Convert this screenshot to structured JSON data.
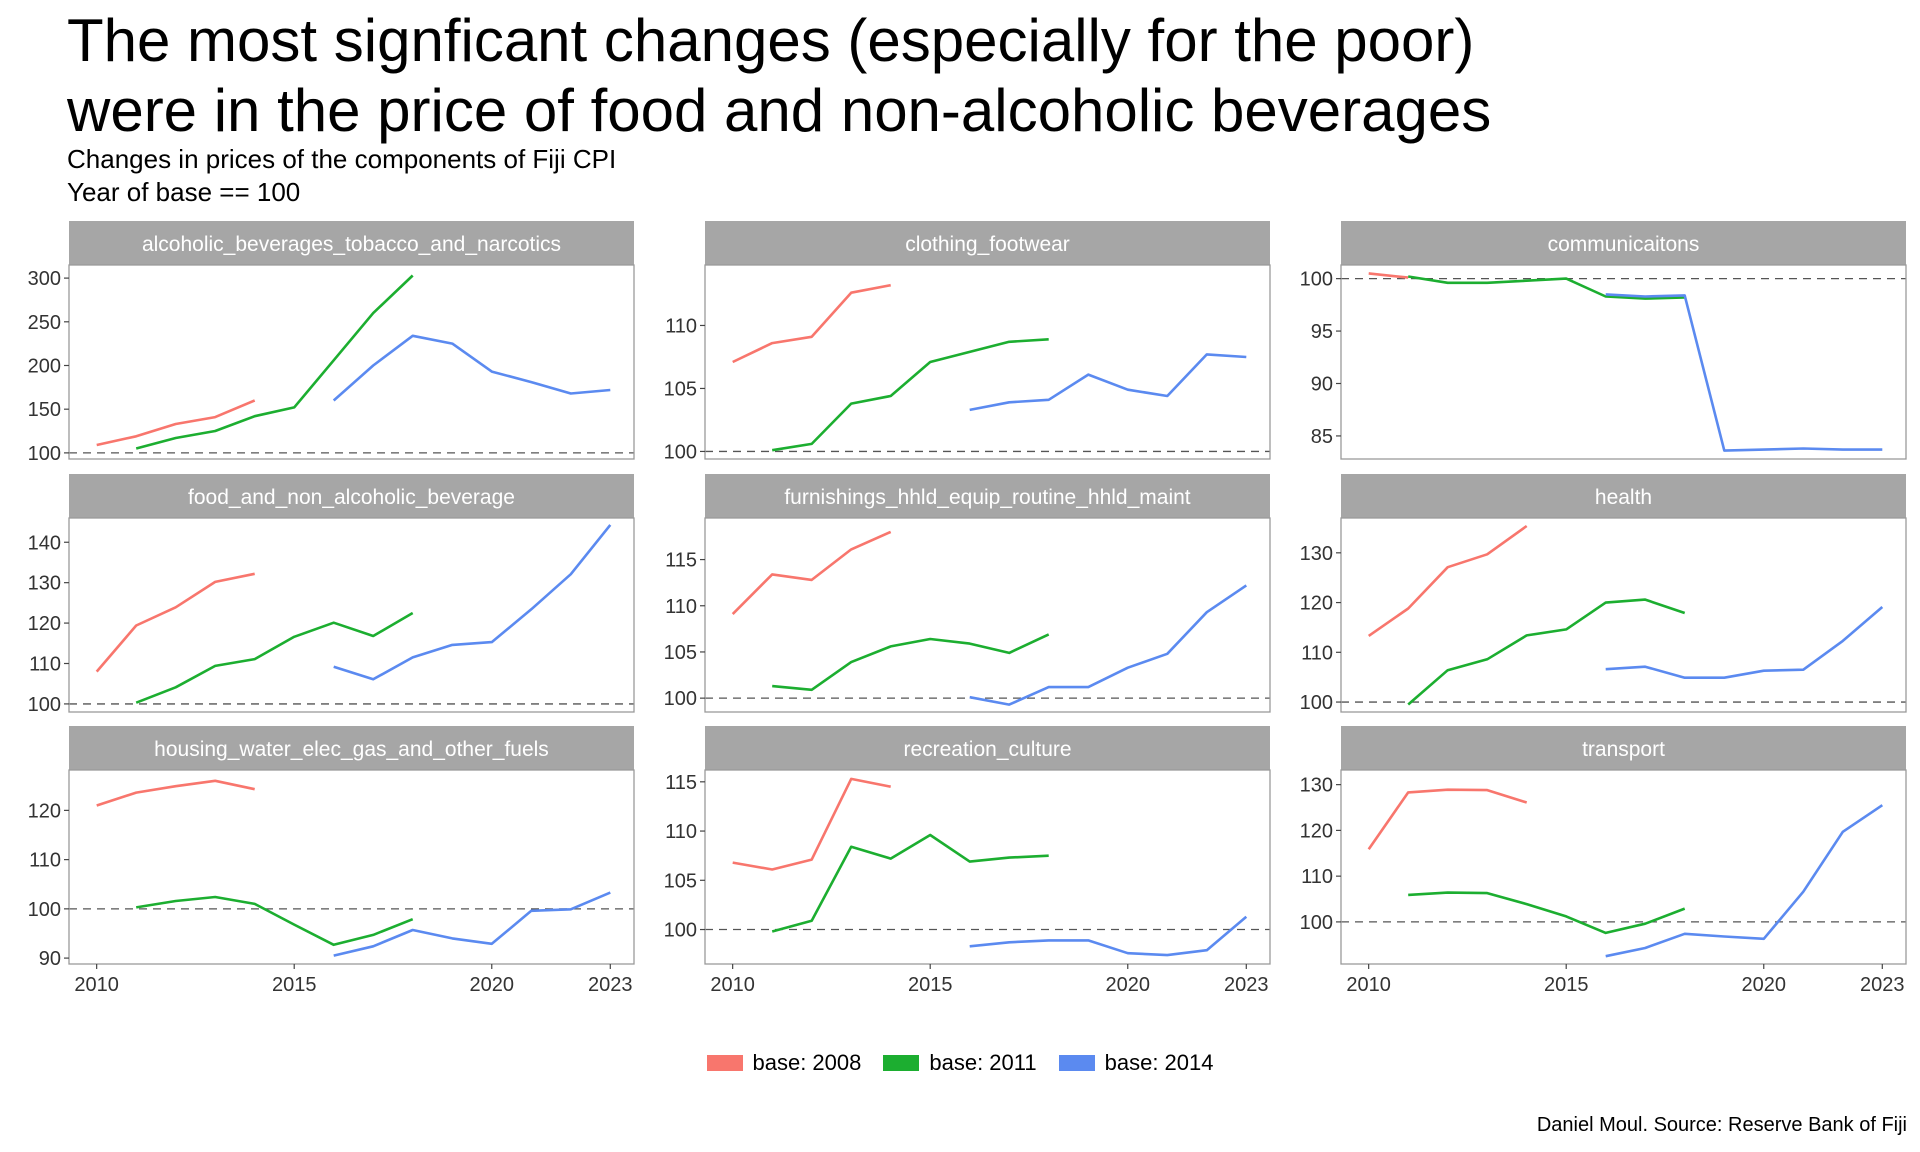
{
  "title_lines": [
    "The most signficant changes (especially for the poor)",
    "were in the price of food and non-alcoholic beverages"
  ],
  "subtitle_lines": [
    "Changes in prices of the components of Fiji CPI",
    "Year of base == 100"
  ],
  "caption": "Daniel Moul. Source: Reserve Bank of Fiji",
  "colors": {
    "base_2008": "#F8766D",
    "base_2011": "#1CAE30",
    "base_2014": "#5B8AF0",
    "strip": "#a6a6a6",
    "reference_line": "#555555"
  },
  "legend": [
    {
      "label": "base: 2008",
      "color": "#F8766D"
    },
    {
      "label": "base: 2011",
      "color": "#1CAE30"
    },
    {
      "label": "base: 2014",
      "color": "#5B8AF0"
    }
  ],
  "chart_data": {
    "type": "line",
    "facet_layout": "3x3 grid, free y scales, shared x axis",
    "reference_line_y": 100,
    "x_ticks": [
      2010,
      2015,
      2020,
      2023
    ],
    "x_range": [
      2009.3,
      2023.6
    ],
    "series_names": [
      "base: 2008",
      "base: 2011",
      "base: 2014"
    ],
    "panels": [
      {
        "title": "alcoholic_beverages_tobacco_and_narcotics",
        "ylim": [
          93,
          315
        ],
        "y_ticks": [
          100,
          150,
          200,
          250,
          300
        ],
        "series": [
          {
            "name": "base: 2008",
            "x": [
              2010,
              2011,
              2012,
              2013,
              2014
            ],
            "y": [
              109,
              119,
              133,
              141,
              160
            ]
          },
          {
            "name": "base: 2011",
            "x": [
              2011,
              2012,
              2013,
              2014,
              2015,
              2016,
              2017,
              2018
            ],
            "y": [
              105,
              117,
              125,
              142,
              152,
              206,
              260,
              303
            ]
          },
          {
            "name": "base: 2014",
            "x": [
              2016,
              2017,
              2018,
              2019,
              2020,
              2021,
              2022,
              2023
            ],
            "y": [
              160,
              200,
              234,
              225,
              193,
              181,
              168,
              172
            ]
          }
        ]
      },
      {
        "title": "clothing_footwear",
        "ylim": [
          99.4,
          114.8
        ],
        "y_ticks": [
          100,
          105,
          110
        ],
        "series": [
          {
            "name": "base: 2008",
            "x": [
              2010,
              2011,
              2012,
              2013,
              2014
            ],
            "y": [
              107.1,
              108.6,
              109.1,
              112.6,
              113.2
            ]
          },
          {
            "name": "base: 2011",
            "x": [
              2011,
              2012,
              2013,
              2014,
              2015,
              2016,
              2017,
              2018
            ],
            "y": [
              100.1,
              100.6,
              103.8,
              104.4,
              107.1,
              107.9,
              108.7,
              108.9
            ]
          },
          {
            "name": "base: 2014",
            "x": [
              2016,
              2017,
              2018,
              2019,
              2020,
              2021,
              2022,
              2023
            ],
            "y": [
              103.3,
              103.9,
              104.1,
              106.1,
              104.9,
              104.4,
              107.7,
              107.5
            ]
          }
        ]
      },
      {
        "title": "communicaitons",
        "ylim": [
          82.8,
          101.3
        ],
        "y_ticks": [
          85,
          90,
          95,
          100
        ],
        "series": [
          {
            "name": "base: 2008",
            "x": [
              2010,
              2011
            ],
            "y": [
              100.5,
              100.1
            ]
          },
          {
            "name": "base: 2011",
            "x": [
              2011,
              2012,
              2013,
              2014,
              2015,
              2016,
              2017,
              2018
            ],
            "y": [
              100.2,
              99.6,
              99.6,
              99.8,
              100.0,
              98.3,
              98.1,
              98.2
            ]
          },
          {
            "name": "base: 2014",
            "x": [
              2016,
              2017,
              2018,
              2019,
              2020,
              2021,
              2022,
              2023
            ],
            "y": [
              98.5,
              98.3,
              98.4,
              83.6,
              83.7,
              83.8,
              83.7,
              83.7
            ]
          }
        ]
      },
      {
        "title": "food_and_non_alcoholic_beverage",
        "ylim": [
          98,
          146
        ],
        "y_ticks": [
          100,
          110,
          120,
          130,
          140
        ],
        "series": [
          {
            "name": "base: 2008",
            "x": [
              2010,
              2011,
              2012,
              2013,
              2014
            ],
            "y": [
              108.0,
              119.4,
              123.9,
              130.2,
              132.2
            ]
          },
          {
            "name": "base: 2011",
            "x": [
              2011,
              2012,
              2013,
              2014,
              2015,
              2016,
              2017,
              2018
            ],
            "y": [
              100.3,
              104.1,
              109.4,
              111.1,
              116.6,
              120.1,
              116.8,
              122.5
            ]
          },
          {
            "name": "base: 2014",
            "x": [
              2016,
              2017,
              2018,
              2019,
              2020,
              2021,
              2022,
              2023
            ],
            "y": [
              109.2,
              106.1,
              111.5,
              114.6,
              115.3,
              123.4,
              132.1,
              144.3
            ]
          }
        ]
      },
      {
        "title": "furnishings_hhld_equip_routine_hhld_maint",
        "ylim": [
          98.5,
          119.5
        ],
        "y_ticks": [
          100,
          105,
          110,
          115
        ],
        "series": [
          {
            "name": "base: 2008",
            "x": [
              2010,
              2011,
              2012,
              2013,
              2014
            ],
            "y": [
              109.1,
              113.4,
              112.8,
              116.1,
              118.0
            ]
          },
          {
            "name": "base: 2011",
            "x": [
              2011,
              2012,
              2013,
              2014,
              2015,
              2016,
              2017,
              2018
            ],
            "y": [
              101.3,
              100.9,
              103.9,
              105.6,
              106.4,
              105.9,
              104.9,
              106.9
            ]
          },
          {
            "name": "base: 2014",
            "x": [
              2016,
              2017,
              2018,
              2019,
              2020,
              2021,
              2022,
              2023
            ],
            "y": [
              100.1,
              99.3,
              101.2,
              101.2,
              103.3,
              104.8,
              109.3,
              112.2
            ]
          }
        ]
      },
      {
        "title": "health",
        "ylim": [
          98,
          137
        ],
        "y_ticks": [
          100,
          110,
          120,
          130
        ],
        "series": [
          {
            "name": "base: 2008",
            "x": [
              2010,
              2011,
              2012,
              2013,
              2014
            ],
            "y": [
              113.3,
              118.8,
              127.1,
              129.7,
              135.4
            ]
          },
          {
            "name": "base: 2011",
            "x": [
              2011,
              2012,
              2013,
              2014,
              2015,
              2016,
              2017,
              2018
            ],
            "y": [
              99.5,
              106.4,
              108.6,
              113.4,
              114.6,
              120.0,
              120.6,
              117.9
            ]
          },
          {
            "name": "base: 2014",
            "x": [
              2016,
              2017,
              2018,
              2019,
              2020,
              2021,
              2022,
              2023
            ],
            "y": [
              106.6,
              107.1,
              104.9,
              104.9,
              106.3,
              106.5,
              112.3,
              119.1
            ]
          }
        ]
      },
      {
        "title": "housing_water_elec_gas_and_other_fuels",
        "ylim": [
          88.8,
          128.2
        ],
        "y_ticks": [
          90,
          100,
          110,
          120
        ],
        "series": [
          {
            "name": "base: 2008",
            "x": [
              2010,
              2011,
              2012,
              2013,
              2014
            ],
            "y": [
              121.0,
              123.6,
              124.9,
              126.0,
              124.3
            ]
          },
          {
            "name": "base: 2011",
            "x": [
              2011,
              2012,
              2013,
              2014,
              2015,
              2016,
              2017,
              2018
            ],
            "y": [
              100.3,
              101.6,
              102.4,
              101.0,
              96.8,
              92.7,
              94.7,
              97.9
            ]
          },
          {
            "name": "base: 2014",
            "x": [
              2016,
              2017,
              2018,
              2019,
              2020,
              2021,
              2022,
              2023
            ],
            "y": [
              90.5,
              92.4,
              95.7,
              94.0,
              92.9,
              99.6,
              99.9,
              103.3
            ]
          }
        ]
      },
      {
        "title": "recreation_culture",
        "ylim": [
          96.5,
          116.2
        ],
        "y_ticks": [
          100,
          105,
          110,
          115
        ],
        "series": [
          {
            "name": "base: 2008",
            "x": [
              2010,
              2011,
              2012,
              2013,
              2014
            ],
            "y": [
              106.8,
              106.1,
              107.1,
              115.3,
              114.5
            ]
          },
          {
            "name": "base: 2011",
            "x": [
              2011,
              2012,
              2013,
              2014,
              2015,
              2016,
              2017,
              2018
            ],
            "y": [
              99.8,
              100.9,
              108.4,
              107.2,
              109.6,
              106.9,
              107.3,
              107.5
            ]
          },
          {
            "name": "base: 2014",
            "x": [
              2016,
              2017,
              2018,
              2019,
              2020,
              2021,
              2022,
              2023
            ],
            "y": [
              98.3,
              98.7,
              98.9,
              98.9,
              97.6,
              97.4,
              97.9,
              101.3
            ]
          }
        ]
      },
      {
        "title": "transport",
        "ylim": [
          90.8,
          133.2
        ],
        "y_ticks": [
          100,
          110,
          120,
          130
        ],
        "series": [
          {
            "name": "base: 2008",
            "x": [
              2010,
              2011,
              2012,
              2013,
              2014
            ],
            "y": [
              115.9,
              128.3,
              128.9,
              128.8,
              126.1
            ]
          },
          {
            "name": "base: 2011",
            "x": [
              2011,
              2012,
              2013,
              2014,
              2015,
              2016,
              2017,
              2018
            ],
            "y": [
              105.9,
              106.4,
              106.3,
              103.9,
              101.2,
              97.6,
              99.6,
              102.9
            ]
          },
          {
            "name": "base: 2014",
            "x": [
              2016,
              2017,
              2018,
              2019,
              2020,
              2021,
              2022,
              2023
            ],
            "y": [
              92.5,
              94.3,
              97.4,
              96.8,
              96.3,
              106.6,
              119.7,
              125.5
            ]
          }
        ]
      }
    ]
  }
}
